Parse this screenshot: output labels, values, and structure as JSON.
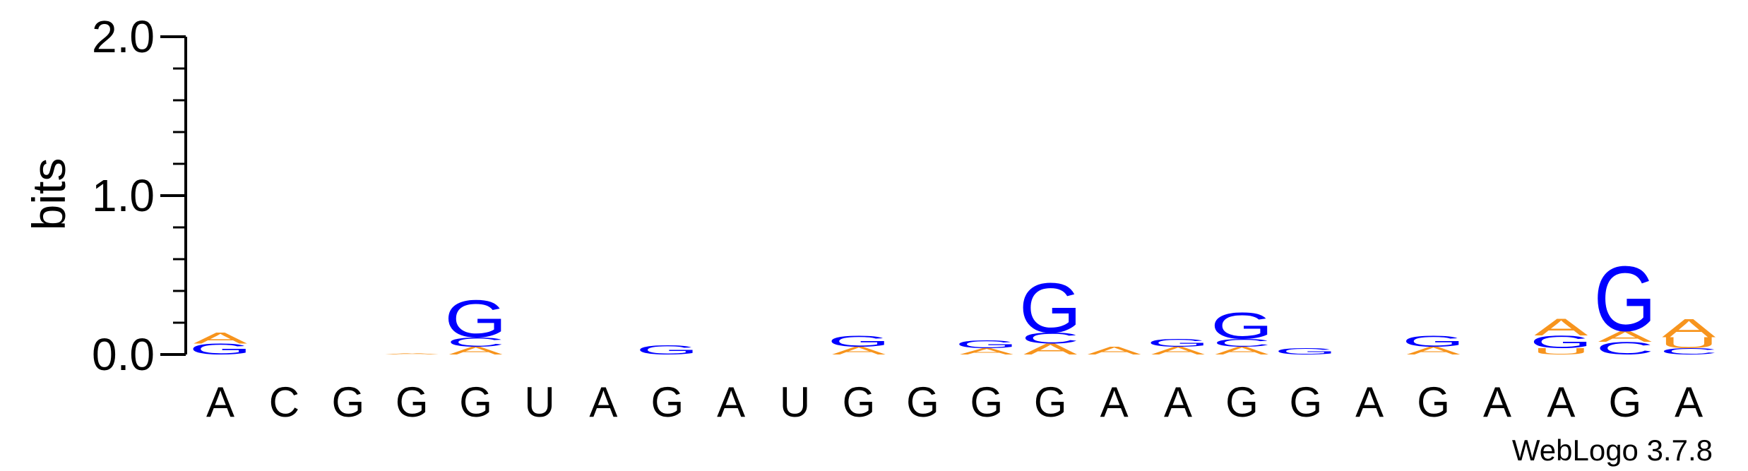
{
  "chart_data": {
    "type": "sequence-logo",
    "ylabel": "bits",
    "ylim": [
      0,
      2.0
    ],
    "yticks": [
      "0.0",
      "1.0",
      "2.0"
    ],
    "credit": "WebLogo 3.7.8",
    "colors": {
      "A": "#f7941d",
      "C": "#0000ff",
      "G": "#0000ff",
      "U": "#f7941d"
    },
    "positions": [
      "A",
      "C",
      "G",
      "G",
      "G",
      "U",
      "A",
      "G",
      "A",
      "U",
      "G",
      "G",
      "G",
      "G",
      "A",
      "A",
      "G",
      "G",
      "A",
      "G",
      "A",
      "A",
      "G",
      "A"
    ],
    "stacks": [
      [
        {
          "l": "G",
          "v": 0.07
        },
        {
          "l": "A",
          "v": 0.07
        }
      ],
      [],
      [],
      [
        {
          "l": "A",
          "v": 0.01
        }
      ],
      [
        {
          "l": "A",
          "v": 0.05
        },
        {
          "l": "C",
          "v": 0.06
        },
        {
          "l": "G",
          "v": 0.24
        }
      ],
      [],
      [],
      [
        {
          "l": "G",
          "v": 0.06
        }
      ],
      [],
      [],
      [
        {
          "l": "A",
          "v": 0.05
        },
        {
          "l": "G",
          "v": 0.07
        }
      ],
      [],
      [
        {
          "l": "A",
          "v": 0.04
        },
        {
          "l": "G",
          "v": 0.05
        }
      ],
      [
        {
          "l": "A",
          "v": 0.07
        },
        {
          "l": "C",
          "v": 0.07
        },
        {
          "l": "G",
          "v": 0.32
        }
      ],
      [
        {
          "l": "A",
          "v": 0.05
        }
      ],
      [
        {
          "l": "A",
          "v": 0.05
        },
        {
          "l": "G",
          "v": 0.05
        }
      ],
      [
        {
          "l": "A",
          "v": 0.05
        },
        {
          "l": "C",
          "v": 0.05
        },
        {
          "l": "G",
          "v": 0.17
        }
      ],
      [
        {
          "l": "G",
          "v": 0.04
        }
      ],
      [],
      [
        {
          "l": "A",
          "v": 0.05
        },
        {
          "l": "G",
          "v": 0.07
        }
      ],
      [],
      [
        {
          "l": "U",
          "v": 0.04
        },
        {
          "l": "G",
          "v": 0.08
        },
        {
          "l": "A",
          "v": 0.11
        }
      ],
      [
        {
          "l": "C",
          "v": 0.08
        },
        {
          "l": "A",
          "v": 0.07
        },
        {
          "l": "G",
          "v": 0.42
        }
      ],
      [
        {
          "l": "C",
          "v": 0.04
        },
        {
          "l": "U",
          "v": 0.07
        },
        {
          "l": "A",
          "v": 0.12
        }
      ]
    ]
  }
}
